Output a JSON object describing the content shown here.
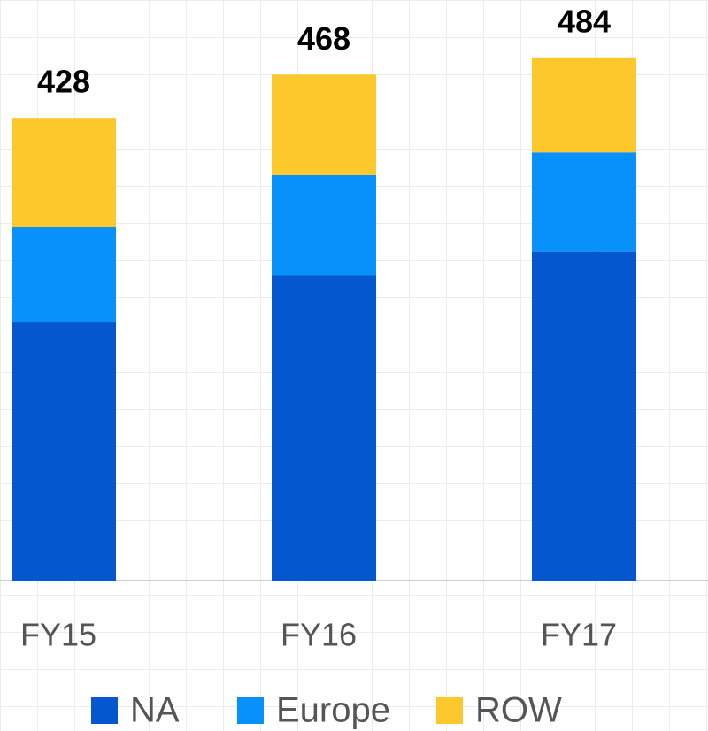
{
  "chart_data": {
    "type": "stacked_bar",
    "categories": [
      "FY15",
      "FY16",
      "FY17"
    ],
    "series": [
      {
        "name": "NA",
        "color": "#0557cf",
        "values": [
          239,
          282,
          304
        ]
      },
      {
        "name": "Europe",
        "color": "#0991fb",
        "values": [
          88,
          93,
          92
        ]
      },
      {
        "name": "ROW",
        "color": "#fdc82b",
        "values": [
          101,
          93,
          88
        ]
      }
    ],
    "totals": [
      428,
      468,
      484
    ],
    "ylim": [
      0,
      537
    ]
  }
}
